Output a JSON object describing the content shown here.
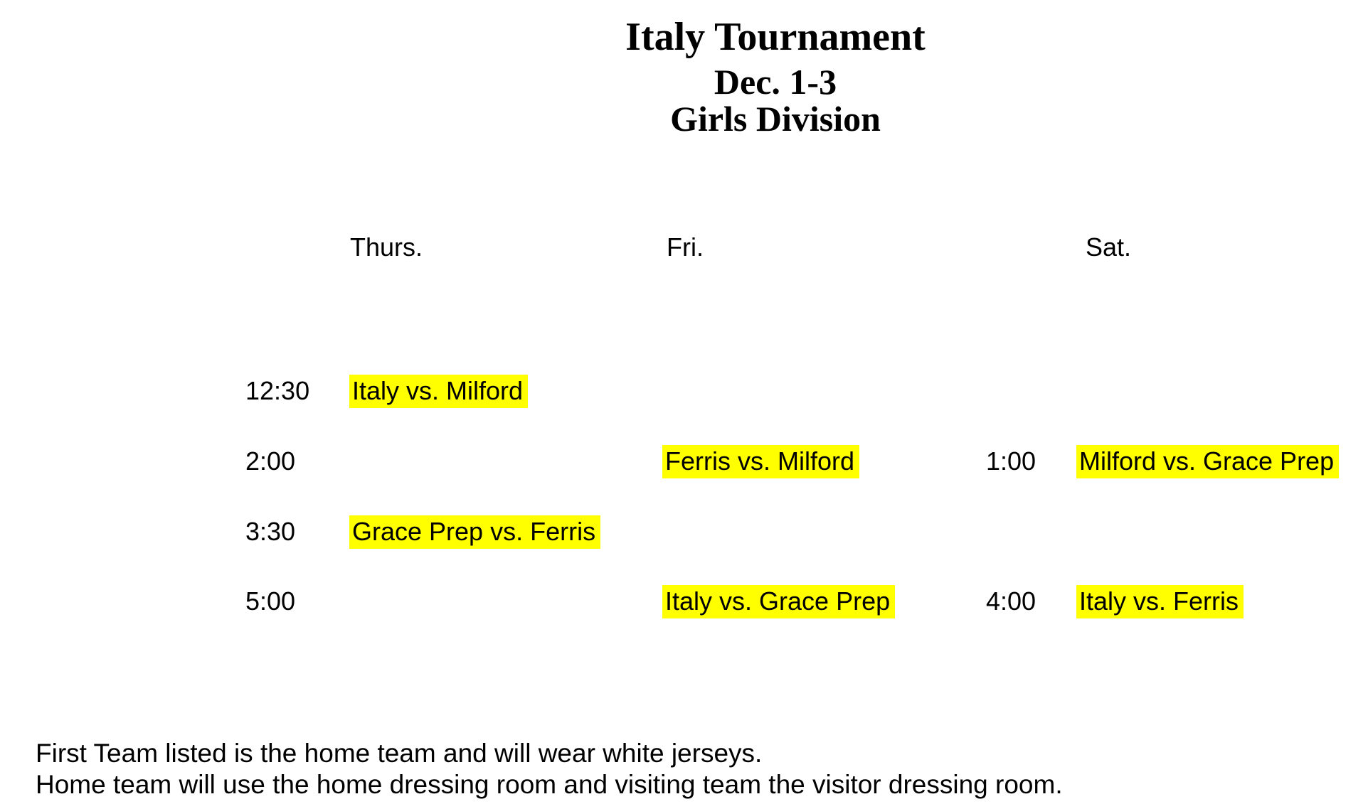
{
  "header": {
    "title": "Italy Tournament",
    "date_range": "Dec. 1-3",
    "division": "Girls Division"
  },
  "columns": {
    "thursday": "Thurs.",
    "friday": "Fri.",
    "saturday": "Sat."
  },
  "schedule": [
    {
      "time": "12:30",
      "thu": "Italy vs. Milford",
      "fri": "",
      "sat_time": "",
      "sat": ""
    },
    {
      "time": "2:00",
      "thu": "",
      "fri": "Ferris vs. Milford",
      "sat_time": "1:00",
      "sat": "Milford vs. Grace Prep"
    },
    {
      "time": "3:30",
      "thu": "Grace Prep vs. Ferris",
      "fri": "",
      "sat_time": "",
      "sat": ""
    },
    {
      "time": "5:00",
      "thu": "",
      "fri": "Italy vs. Grace Prep",
      "sat_time": "4:00",
      "sat": "Italy vs. Ferris"
    }
  ],
  "notes": {
    "line1": "First Team listed is the home team and will wear white jerseys.",
    "line2": "Home team will use the home dressing room and visiting team the visitor dressing room."
  },
  "colors": {
    "highlight": "#FFFF00",
    "text": "#000000",
    "background": "#FFFFFF"
  }
}
